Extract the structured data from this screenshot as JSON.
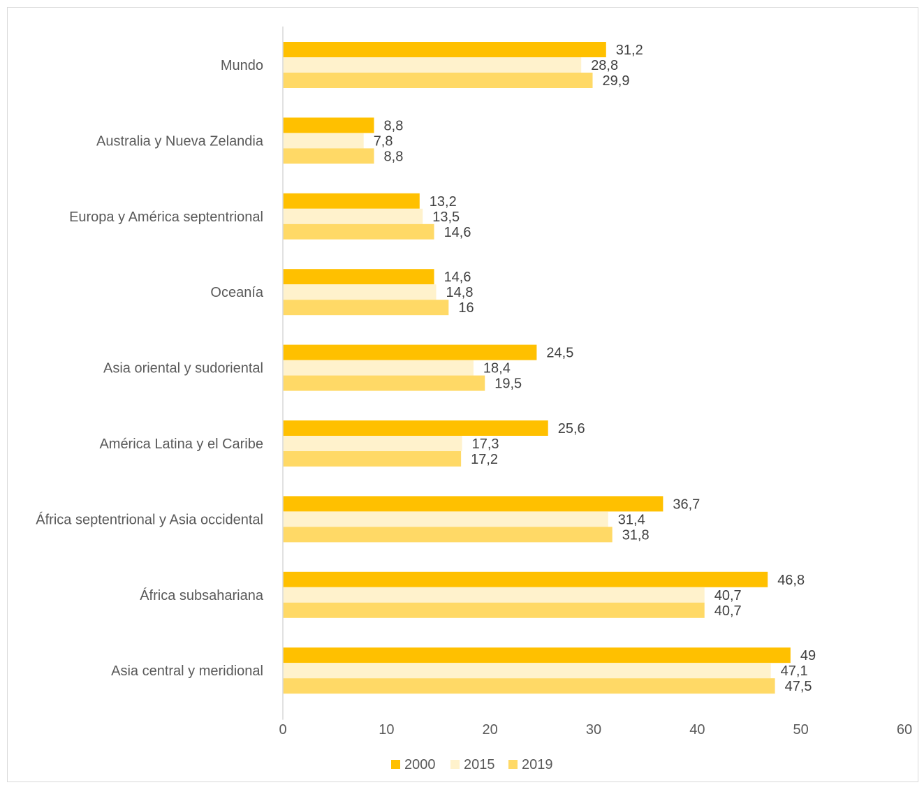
{
  "chart_data": {
    "type": "bar",
    "orientation": "horizontal",
    "title": "",
    "xlabel": "",
    "ylabel": "",
    "categories": [
      "Mundo",
      "Australia y Nueva Zelandia",
      "Europa y América septentrional",
      "Oceanía",
      "Asia oriental y sudoriental",
      "América Latina y el Caribe",
      "África septentrional y Asia occidental",
      "África subsahariana",
      "Asia central y meridional"
    ],
    "series": [
      {
        "name": "2000",
        "color": "#FFC000",
        "values": [
          31.2,
          8.8,
          13.2,
          14.6,
          24.5,
          25.6,
          36.7,
          46.8,
          49
        ],
        "labels": [
          "31,2",
          "8,8",
          "13,2",
          "14,6",
          "24,5",
          "25,6",
          "36,7",
          "46,8",
          "49"
        ]
      },
      {
        "name": "2015",
        "color": "#FFF2CC",
        "values": [
          28.8,
          7.8,
          13.5,
          14.8,
          18.4,
          17.3,
          31.4,
          40.7,
          47.1
        ],
        "labels": [
          "28,8",
          "7,8",
          "13,5",
          "14,8",
          "18,4",
          "17,3",
          "31,4",
          "40,7",
          "47,1"
        ]
      },
      {
        "name": "2019",
        "color": "#FFD966",
        "values": [
          29.9,
          8.8,
          14.6,
          16,
          19.5,
          17.2,
          31.8,
          40.7,
          47.5
        ],
        "labels": [
          "29,9",
          "8,8",
          "14,6",
          "16",
          "19,5",
          "17,2",
          "31,8",
          "40,7",
          "47,5"
        ]
      }
    ],
    "xlim": [
      0,
      60
    ],
    "xticks": [
      0,
      10,
      20,
      30,
      40,
      50,
      60
    ],
    "xtick_labels": [
      "0",
      "10",
      "20",
      "30",
      "40",
      "50",
      "60"
    ],
    "grid": false,
    "legend_position": "bottom"
  }
}
